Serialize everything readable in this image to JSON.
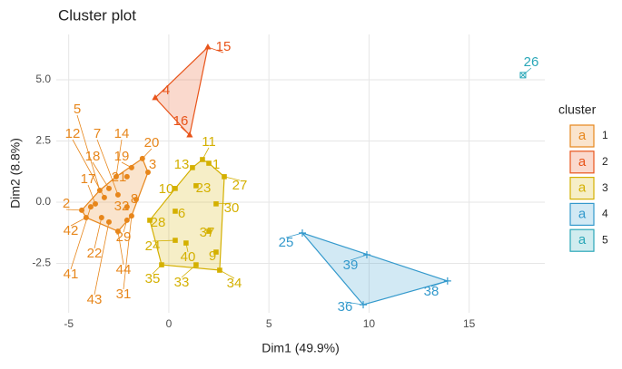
{
  "chart_data": {
    "type": "cluster",
    "title": "Cluster plot",
    "xlabel": "Dim1 (49.9%)",
    "ylabel": "Dim2 (8.8%)",
    "legend_title": "cluster",
    "legend_key_glyph": "a",
    "legend_position": "right",
    "grid": true,
    "xlim": [
      -5.62,
      18.78
    ],
    "ylim": [
      -4.52,
      6.85
    ],
    "xticks": [
      -5,
      0,
      5,
      10,
      15
    ],
    "yticks": [
      -2.5,
      {
        "value": 0,
        "label": "0.0"
      },
      2.5,
      {
        "value": 5,
        "label": "5.0"
      }
    ],
    "series": [
      {
        "name": "1",
        "color": "#E7861B",
        "shape": "circle",
        "labels": [
          "20",
          "3",
          "19",
          "21",
          "14",
          "18",
          "7",
          "5",
          "12",
          "17",
          "8",
          "32",
          "2",
          "42",
          "22",
          "29",
          "41",
          "44",
          "43",
          "31"
        ],
        "x": [
          -1.32,
          -1.04,
          -1.86,
          -2.09,
          -2.63,
          -2.99,
          -2.54,
          -3.45,
          -3.22,
          -3.67,
          -1.63,
          -2.09,
          -4.35,
          -4.13,
          -3.36,
          -2.09,
          -3.9,
          -2.54,
          -2.99,
          -1.86
        ],
        "y": [
          1.78,
          1.22,
          1.41,
          1.04,
          1.04,
          0.56,
          0.3,
          0.48,
          0.19,
          -0.07,
          0.11,
          -0.19,
          -0.33,
          -0.63,
          -0.63,
          -0.74,
          -0.19,
          -1.19,
          -0.81,
          -0.56
        ]
      },
      {
        "name": "2",
        "color": "#E8541A",
        "shape": "triangle",
        "labels": [
          "15",
          "4",
          "16"
        ],
        "x": [
          1.95,
          -0.68,
          1.04
        ],
        "y": [
          6.33,
          4.26,
          2.74
        ]
      },
      {
        "name": "3",
        "color": "#D4B000",
        "shape": "square",
        "labels": [
          "11",
          "13",
          "1",
          "27",
          "23",
          "10",
          "30",
          "6",
          "37",
          "28",
          "24",
          "40",
          "9",
          "35",
          "33",
          "34"
        ],
        "x": [
          1.68,
          1.18,
          2.0,
          2.77,
          1.36,
          0.32,
          2.36,
          0.32,
          2.0,
          -0.95,
          0.32,
          0.86,
          2.36,
          -0.36,
          1.36,
          2.54
        ],
        "y": [
          1.74,
          1.41,
          1.59,
          1.04,
          0.67,
          0.56,
          -0.07,
          -0.37,
          -1.19,
          -0.74,
          -1.56,
          -1.67,
          -2.04,
          -2.56,
          -2.56,
          -2.78
        ]
      },
      {
        "name": "4",
        "color": "#3399CC",
        "shape": "cross",
        "labels": [
          "25",
          "39",
          "38",
          "36"
        ],
        "x": [
          6.67,
          9.89,
          13.92,
          9.71
        ],
        "y": [
          -1.26,
          -2.15,
          -3.22,
          -4.19
        ]
      },
      {
        "name": "5",
        "color": "#2AA7B8",
        "shape": "boxx",
        "labels": [
          "26"
        ],
        "x": [
          17.69
        ],
        "y": [
          5.19
        ]
      }
    ]
  }
}
